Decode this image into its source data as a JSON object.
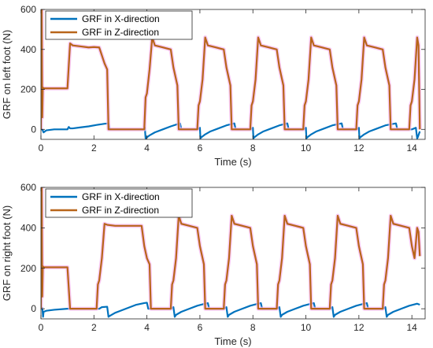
{
  "chart_data": [
    {
      "type": "line",
      "xlabel": "Time (s)",
      "ylabel": "GRF on left foot (N)",
      "xlim": [
        0,
        14.5
      ],
      "ylim": [
        -50,
        600
      ],
      "xticks": [
        "0",
        "2",
        "4",
        "6",
        "8",
        "10",
        "12",
        "14"
      ],
      "yticks": [
        "0",
        "200",
        "400",
        "600"
      ],
      "grid": false,
      "legend_position": "top-left",
      "series": [
        {
          "name": "GRF in X-direction",
          "color": "#0072BD",
          "x": [
            0,
            0.05,
            0.1,
            0.2,
            0.5,
            0.8,
            1.0,
            1.05,
            1.1,
            1.2,
            1.5,
            1.8,
            2.1,
            2.4,
            2.55,
            2.6,
            2.8,
            3.0,
            3.5,
            3.9,
            3.92,
            3.95,
            4.1,
            4.3,
            4.6,
            4.9,
            5.2,
            5.25,
            5.3,
            5.5,
            5.9,
            6.0,
            6.02,
            6.05,
            6.2,
            6.4,
            6.7,
            7.0,
            7.3,
            7.35,
            7.4,
            7.6,
            7.9,
            8.0,
            8.02,
            8.05,
            8.2,
            8.4,
            8.7,
            9.0,
            9.3,
            9.35,
            9.4,
            9.6,
            9.9,
            10.0,
            10.02,
            10.05,
            10.2,
            10.4,
            10.7,
            11.0,
            11.35,
            11.4,
            11.45,
            11.6,
            11.9,
            12.0,
            12.02,
            12.05,
            12.2,
            12.4,
            12.7,
            13.0,
            13.4,
            13.45,
            13.5,
            13.7,
            14.0,
            14.15,
            14.2,
            14.22,
            14.3
          ],
          "y": [
            0,
            0,
            -15,
            -5,
            0,
            0,
            0,
            12,
            5,
            5,
            10,
            15,
            22,
            28,
            30,
            0,
            0,
            0,
            0,
            0,
            10,
            -45,
            -30,
            -15,
            0,
            15,
            28,
            30,
            0,
            0,
            0,
            8,
            -45,
            -40,
            -25,
            -10,
            5,
            20,
            30,
            0,
            0,
            0,
            0,
            8,
            -45,
            -40,
            -25,
            -10,
            5,
            20,
            30,
            0,
            0,
            0,
            0,
            8,
            -45,
            -40,
            -25,
            -10,
            5,
            20,
            30,
            0,
            0,
            0,
            0,
            8,
            -45,
            -40,
            -25,
            -10,
            5,
            20,
            30,
            0,
            0,
            0,
            0,
            8,
            -45,
            -40,
            -10
          ]
        },
        {
          "name": "GRF in Z-direction",
          "color": "#D95319",
          "x": [
            0,
            0.03,
            0.05,
            0.07,
            0.1,
            1.0,
            1.1,
            1.2,
            1.5,
            1.8,
            2.0,
            2.2,
            2.4,
            2.5,
            2.55,
            2.6,
            2.8,
            3.0,
            3.5,
            3.9,
            3.95,
            4.0,
            4.1,
            4.2,
            4.3,
            4.6,
            4.9,
            5.0,
            5.05,
            5.1,
            5.15,
            5.2,
            5.25,
            5.3,
            5.5,
            5.9,
            5.95,
            6.0,
            6.1,
            6.2,
            6.3,
            6.6,
            6.9,
            7.0,
            7.05,
            7.1,
            7.15,
            7.2,
            7.25,
            7.3,
            7.5,
            7.9,
            7.95,
            8.0,
            8.1,
            8.2,
            8.3,
            8.6,
            8.9,
            9.0,
            9.05,
            9.1,
            9.15,
            9.2,
            9.25,
            9.3,
            9.5,
            9.9,
            9.95,
            10.0,
            10.1,
            10.2,
            10.3,
            10.6,
            10.9,
            11.0,
            11.05,
            11.1,
            11.15,
            11.2,
            11.25,
            11.3,
            11.5,
            11.9,
            11.95,
            12.0,
            12.1,
            12.2,
            12.3,
            12.6,
            12.9,
            13.0,
            13.05,
            13.1,
            13.15,
            13.2,
            13.25,
            13.3,
            13.5,
            13.9,
            13.95,
            14.0,
            14.1,
            14.2,
            14.25,
            14.3
          ],
          "y": [
            0,
            600,
            60,
            210,
            205,
            205,
            430,
            420,
            415,
            410,
            412,
            410,
            330,
            300,
            0,
            0,
            0,
            0,
            0,
            0,
            160,
            180,
            300,
            460,
            420,
            410,
            400,
            310,
            280,
            250,
            220,
            0,
            0,
            0,
            0,
            0,
            120,
            140,
            250,
            460,
            420,
            410,
            400,
            310,
            280,
            250,
            220,
            0,
            0,
            0,
            0,
            0,
            120,
            140,
            250,
            460,
            420,
            410,
            400,
            310,
            280,
            250,
            220,
            0,
            0,
            0,
            0,
            0,
            120,
            140,
            250,
            460,
            420,
            410,
            400,
            310,
            280,
            250,
            220,
            0,
            0,
            0,
            0,
            0,
            120,
            140,
            250,
            460,
            420,
            410,
            400,
            310,
            280,
            250,
            220,
            0,
            0,
            0,
            0,
            0,
            120,
            140,
            250,
            460,
            420,
            0
          ]
        }
      ]
    },
    {
      "type": "line",
      "xlabel": "Time (s)",
      "ylabel": "GRF on right foot (N)",
      "xlim": [
        0,
        14.5
      ],
      "ylim": [
        -50,
        600
      ],
      "xticks": [
        "0",
        "2",
        "4",
        "6",
        "8",
        "10",
        "12",
        "14"
      ],
      "yticks": [
        "0",
        "200",
        "400",
        "600"
      ],
      "grid": false,
      "legend_position": "top-left",
      "series": [
        {
          "name": "GRF in X-direction",
          "color": "#0072BD",
          "x": [
            0,
            0.05,
            0.08,
            0.1,
            0.2,
            0.5,
            1.0,
            1.1,
            1.2,
            2.2,
            2.3,
            2.5,
            2.55,
            2.6,
            2.8,
            3.0,
            3.3,
            3.6,
            3.9,
            4.0,
            4.05,
            4.2,
            4.9,
            5.0,
            5.05,
            5.1,
            5.3,
            5.6,
            5.9,
            6.2,
            6.3,
            6.35,
            6.5,
            6.9,
            7.0,
            7.05,
            7.1,
            7.3,
            7.6,
            7.9,
            8.2,
            8.3,
            8.35,
            8.5,
            8.9,
            9.0,
            9.05,
            9.1,
            9.3,
            9.6,
            9.9,
            10.2,
            10.3,
            10.35,
            10.5,
            10.9,
            11.0,
            11.05,
            11.1,
            11.3,
            11.6,
            11.9,
            12.2,
            12.3,
            12.35,
            12.5,
            12.9,
            13.0,
            13.05,
            13.1,
            13.3,
            13.6,
            13.9,
            14.2,
            14.3
          ],
          "y": [
            0,
            5,
            -40,
            -15,
            -10,
            -5,
            0,
            0,
            0,
            0,
            8,
            10,
            -40,
            -35,
            -20,
            -10,
            5,
            20,
            28,
            30,
            0,
            0,
            0,
            8,
            -40,
            -30,
            -15,
            0,
            15,
            25,
            28,
            0,
            0,
            0,
            8,
            -40,
            -30,
            -15,
            0,
            15,
            25,
            28,
            0,
            0,
            0,
            8,
            -40,
            -30,
            -15,
            0,
            15,
            25,
            28,
            0,
            0,
            0,
            8,
            -40,
            -30,
            -15,
            0,
            15,
            25,
            28,
            0,
            0,
            0,
            8,
            -40,
            -30,
            -15,
            0,
            15,
            25,
            20
          ]
        },
        {
          "name": "GRF in Z-direction",
          "color": "#D95319",
          "x": [
            0,
            0.03,
            0.05,
            0.07,
            0.1,
            1.0,
            1.1,
            1.2,
            2.1,
            2.15,
            2.2,
            2.3,
            2.4,
            2.5,
            2.8,
            3.2,
            3.6,
            3.8,
            3.9,
            3.95,
            4.0,
            4.1,
            4.15,
            4.2,
            4.9,
            4.95,
            5.0,
            5.1,
            5.2,
            5.3,
            5.6,
            5.9,
            6.0,
            6.05,
            6.1,
            6.15,
            6.2,
            6.3,
            6.9,
            6.95,
            7.0,
            7.1,
            7.2,
            7.3,
            7.6,
            7.9,
            8.0,
            8.05,
            8.1,
            8.15,
            8.2,
            8.3,
            8.9,
            8.95,
            9.0,
            9.1,
            9.2,
            9.3,
            9.6,
            9.9,
            10.0,
            10.05,
            10.1,
            10.15,
            10.2,
            10.3,
            10.9,
            10.95,
            11.0,
            11.1,
            11.2,
            11.3,
            11.6,
            11.9,
            12.0,
            12.05,
            12.1,
            12.15,
            12.2,
            12.3,
            12.9,
            12.95,
            13.0,
            13.1,
            13.2,
            13.3,
            13.6,
            13.9,
            14.0,
            14.05,
            14.1,
            14.2,
            14.25,
            14.3
          ],
          "y": [
            0,
            600,
            60,
            210,
            205,
            205,
            0,
            0,
            0,
            120,
            140,
            250,
            420,
            415,
            410,
            410,
            410,
            410,
            310,
            280,
            250,
            220,
            0,
            0,
            0,
            120,
            140,
            250,
            460,
            420,
            410,
            400,
            310,
            280,
            250,
            220,
            0,
            0,
            0,
            120,
            140,
            250,
            460,
            420,
            410,
            400,
            310,
            280,
            250,
            220,
            0,
            0,
            0,
            120,
            140,
            250,
            460,
            420,
            410,
            400,
            310,
            280,
            250,
            220,
            0,
            0,
            0,
            120,
            140,
            250,
            460,
            420,
            410,
            400,
            310,
            280,
            250,
            220,
            0,
            0,
            0,
            120,
            140,
            250,
            460,
            420,
            410,
            400,
            310,
            280,
            250,
            400,
            380,
            260
          ]
        }
      ]
    }
  ]
}
